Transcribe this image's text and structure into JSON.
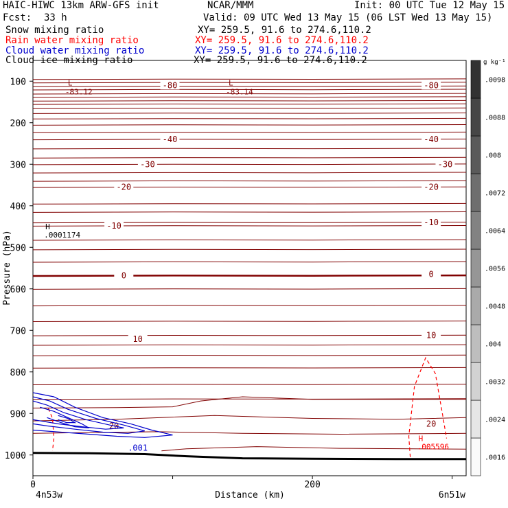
{
  "header": {
    "title_left": "HAIC-HIWC 13km ARW-GFS init",
    "org": "NCAR/MMM",
    "init": "Init: 00 UTC Tue 12 May 15",
    "fcst_label": "Fcst:",
    "fcst_value": "33 h",
    "valid": "Valid: 09 UTC Wed 13 May 15 (06 LST Wed 13 May 15)",
    "fields": [
      {
        "name": "Snow mixing ratio",
        "xy": "XY= 259.5, 91.6 to 274.6,110.2",
        "color": "#000000"
      },
      {
        "name": "Rain water mixing ratio",
        "xy": "XY= 259.5, 91.6 to 274.6,110.2",
        "color": "#ff0000"
      },
      {
        "name": "Cloud water mixing ratio",
        "xy": "XY= 259.5, 91.6 to 274.6,110.2",
        "color": "#0000cc"
      },
      {
        "name": "Cloud ice mixing ratio",
        "xy": "XY= 259.5, 91.6 to 274.6,110.2",
        "color": "#000000"
      }
    ]
  },
  "chart_data": {
    "type": "contour cross-section",
    "ylabel": "Pressure (hPa)",
    "xlabel": "Distance (km)",
    "x_left_label": "4n53w",
    "x_right_label": "6n51w",
    "xlim": [
      0,
      310
    ],
    "ylim": [
      1050,
      50
    ],
    "x_ticks": [
      0,
      100,
      200,
      300
    ],
    "x_tick_labels": [
      "0",
      "",
      "200",
      ""
    ],
    "y_ticks": [
      100,
      200,
      300,
      400,
      500,
      600,
      700,
      800,
      900,
      1000
    ],
    "colorbar": {
      "unit": "g kg⁻¹",
      "labels": [
        ".0016",
        ".0024",
        ".0032",
        ".004",
        ".0048",
        ".0056",
        ".0064",
        ".0072",
        ".008",
        ".0088",
        ".0098"
      ]
    },
    "temperature_contour_labels": [
      {
        "text": "-80",
        "x": 98,
        "p": 110
      },
      {
        "text": "-80",
        "x": 285,
        "p": 110
      },
      {
        "text": "-40",
        "x": 98,
        "p": 240
      },
      {
        "text": "-40",
        "x": 285,
        "p": 240
      },
      {
        "text": "-30",
        "x": 82,
        "p": 300
      },
      {
        "text": "-30",
        "x": 295,
        "p": 300
      },
      {
        "text": "-20",
        "x": 65,
        "p": 355
      },
      {
        "text": "-20",
        "x": 285,
        "p": 355
      },
      {
        "text": "-10",
        "x": 58,
        "p": 448
      },
      {
        "text": "-10",
        "x": 285,
        "p": 440
      },
      {
        "text": "0",
        "x": 65,
        "p": 568
      },
      {
        "text": "0",
        "x": 285,
        "p": 565
      },
      {
        "text": "10",
        "x": 75,
        "p": 721
      },
      {
        "text": "10",
        "x": 285,
        "p": 712
      },
      {
        "text": "20",
        "x": 58,
        "p": 930
      },
      {
        "text": "20",
        "x": 285,
        "p": 925
      }
    ],
    "low_markers": [
      {
        "marker": "L",
        "value": "-83.12",
        "x": 25,
        "p": 100
      },
      {
        "marker": "L",
        "value": "-83.14",
        "x": 140,
        "p": 100
      }
    ],
    "high_markers": [
      {
        "marker": "H",
        "value": ".0001174",
        "x": 5,
        "p": 470
      },
      {
        "marker": "H",
        "value": ".005596",
        "x": 272,
        "p": 980
      }
    ],
    "cloud_water_labels": [
      {
        "text": ".001",
        "x": 75,
        "p": 983
      }
    ]
  }
}
